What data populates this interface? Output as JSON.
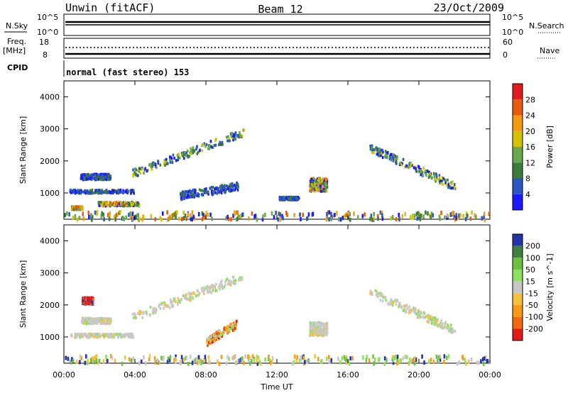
{
  "header": {
    "station": "Unwin (fitACF)",
    "beam": "Beam 12",
    "date": "23/Oct/2009"
  },
  "status_panel": {
    "nsky_label": "N.Sky",
    "nsky_ticks": [
      "10^5",
      "10^0"
    ],
    "nsearch_label": "N.Search",
    "nsearch_ticks": [
      "10^5",
      "10^0"
    ],
    "freq_label": "Freq.",
    "freq_unit": "[MHz]",
    "freq_ticks": [
      "18",
      "8"
    ],
    "nave_label": "Nave",
    "nave_ticks": [
      "60",
      "0"
    ],
    "cpid_label": "CPID",
    "cpid_text": "normal (fast stereo) 153"
  },
  "chart_data": [
    {
      "type": "heatmap",
      "name": "power-panel",
      "ylabel": "Slant Range [km]",
      "ylim": [
        180,
        4500
      ],
      "yticks": [
        "1000",
        "2000",
        "3000",
        "4000"
      ],
      "xlim": [
        0,
        24
      ],
      "colorbar_label": "Power [dB]",
      "colorbar_ticks": [
        "4",
        "8",
        "12",
        "16",
        "20",
        "24",
        "28"
      ],
      "colorbar_colors": [
        "#1a1aff",
        "#2a57c0",
        "#3b7b3b",
        "#6aa84f",
        "#d4c200",
        "#f39c12",
        "#e85c0c",
        "#e31a1c"
      ],
      "features": [
        {
          "t": [
            0.3,
            3.9
          ],
          "range": [
            950,
            1130
          ],
          "level": "low"
        },
        {
          "t": [
            0.9,
            2.6
          ],
          "range": [
            1350,
            1650
          ],
          "level": "low"
        },
        {
          "t": [
            0.4,
            1.0
          ],
          "range": [
            450,
            600
          ],
          "level": "high"
        },
        {
          "t": [
            1.9,
            4.2
          ],
          "range": [
            550,
            750
          ],
          "level": "high"
        },
        {
          "t": [
            3.8,
            10.2
          ],
          "range": [
            1600,
            2900
          ],
          "level": "mid"
        },
        {
          "t": [
            6.5,
            9.8
          ],
          "range": [
            900,
            1200
          ],
          "level": "low"
        },
        {
          "t": [
            12.1,
            13.2
          ],
          "range": [
            750,
            900
          ],
          "level": "low"
        },
        {
          "t": [
            13.8,
            14.8
          ],
          "range": [
            900,
            1600
          ],
          "level": "high"
        },
        {
          "t": [
            17.2,
            22.0
          ],
          "range": [
            1200,
            2400
          ],
          "level": "mid"
        },
        {
          "t": [
            0.0,
            24.0
          ],
          "range": [
            180,
            420
          ],
          "level": "noise"
        }
      ]
    },
    {
      "type": "heatmap",
      "name": "velocity-panel",
      "ylabel": "Slant Range [km]",
      "ylim": [
        180,
        4500
      ],
      "yticks": [
        "1000",
        "2000",
        "3000",
        "4000"
      ],
      "xlim": [
        0,
        24
      ],
      "xticks": [
        "00:00",
        "04:00",
        "08:00",
        "12:00",
        "16:00",
        "20:00",
        "00:00"
      ],
      "xlabel": "Time UT",
      "colorbar_label": "Velocity [m s^-1]",
      "colorbar_ticks": [
        "200",
        "100",
        "50",
        "15",
        "-15",
        "-50",
        "-100",
        "-200"
      ],
      "colorbar_colors": [
        "#2233aa",
        "#3f7f3f",
        "#6dbf3f",
        "#8fe060",
        "#c8c8c8",
        "#f6c040",
        "#f59c12",
        "#ef6a10",
        "#e31a1c"
      ],
      "features": [
        {
          "t": [
            0.3,
            3.9
          ],
          "range": [
            950,
            1130
          ],
          "level": "gray"
        },
        {
          "t": [
            0.9,
            2.6
          ],
          "range": [
            1350,
            1650
          ],
          "level": "gray"
        },
        {
          "t": [
            1.0,
            1.6
          ],
          "range": [
            1950,
            2300
          ],
          "level": "red"
        },
        {
          "t": [
            3.8,
            10.2
          ],
          "range": [
            1600,
            2900
          ],
          "level": "gray"
        },
        {
          "t": [
            8.0,
            9.7
          ],
          "range": [
            850,
            1400
          ],
          "level": "orange"
        },
        {
          "t": [
            13.8,
            14.8
          ],
          "range": [
            900,
            1600
          ],
          "level": "gray"
        },
        {
          "t": [
            17.2,
            22.0
          ],
          "range": [
            1200,
            2400
          ],
          "level": "gray"
        },
        {
          "t": [
            0.0,
            24.0
          ],
          "range": [
            180,
            420
          ],
          "level": "noise"
        }
      ]
    }
  ]
}
